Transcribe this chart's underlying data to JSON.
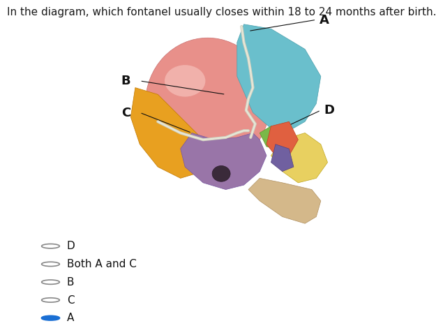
{
  "title": "In the diagram, which fontanel usually closes within 18 to 24 months after birth.",
  "title_fontsize": 11,
  "title_color": "#1a1a1a",
  "background_color": "#ffffff",
  "options": [
    "D",
    "Both A and C",
    "B",
    "C",
    "A"
  ],
  "correct_option": "A",
  "option_fontsize": 11,
  "radio_color_selected": "#1a6fd4",
  "label_A": "A",
  "label_B": "B",
  "label_C": "C",
  "label_D": "D",
  "label_fontsize": 13,
  "parietal_color": "#e8908a",
  "parietal_edge": "#c97070",
  "highlight_color": "#f5c0ba",
  "blue_color": "#6abfcc",
  "blue_edge": "#4a9fac",
  "orange_color": "#e8a020",
  "orange_edge": "#c07800",
  "purple_color": "#9975a8",
  "purple_edge": "#7755a0",
  "green_color": "#7ab848",
  "green_edge": "#5a9828",
  "red_color": "#e06040",
  "red_edge": "#c04020",
  "yellow_color": "#e8d060",
  "yellow_edge": "#c0a820",
  "tan_color": "#d4b88a",
  "tan_edge": "#b09060",
  "purple2_color": "#7060a0",
  "purple2_edge": "#504080",
  "suture_color1": "#d0d0c0",
  "suture_color2": "#e8e8d8",
  "hole_color": "#3a2a3a",
  "label_color": "#111111"
}
